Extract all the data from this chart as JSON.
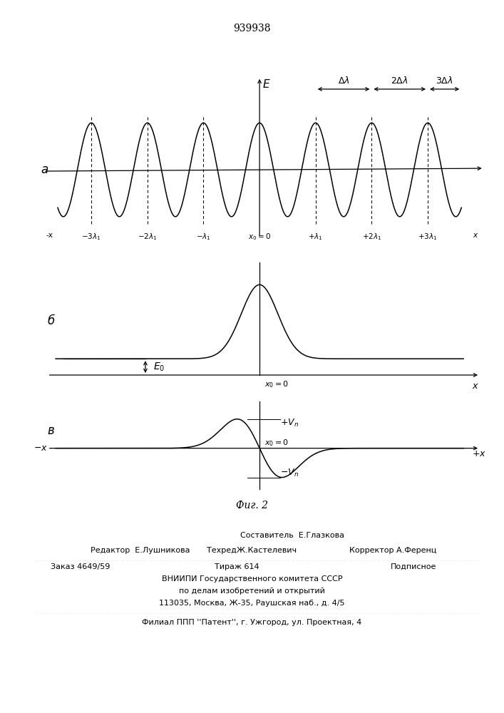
{
  "title": "939938",
  "title_fontsize": 10,
  "bg_color": "#ffffff",
  "panel_a_label": "а",
  "panel_b_label": "б",
  "panel_v_label": "в",
  "fig2_label": "Фиг. 2",
  "footer_line0": "Составитель  Е.Глазкова",
  "footer_line1a": "Редактор  Е.Лушникова",
  "footer_line1b": "ТехредЖ.Кастелевич",
  "footer_line1c": "Корректор А.Ференц",
  "footer_line2a": "Заказ 4649/59",
  "footer_line2b": "Тираж 614",
  "footer_line2c": "Подписное",
  "footer_line3": "ВНИИПИ Государственного комитета СССР",
  "footer_line4": "по делам изобретений и открытий",
  "footer_line5": "113035, Москва, Ж-35, Раушская наб., д. 4/5",
  "footer_line6": "Филиал ППП ''Патент'', г. Ужгород, ул. Проектная, 4"
}
